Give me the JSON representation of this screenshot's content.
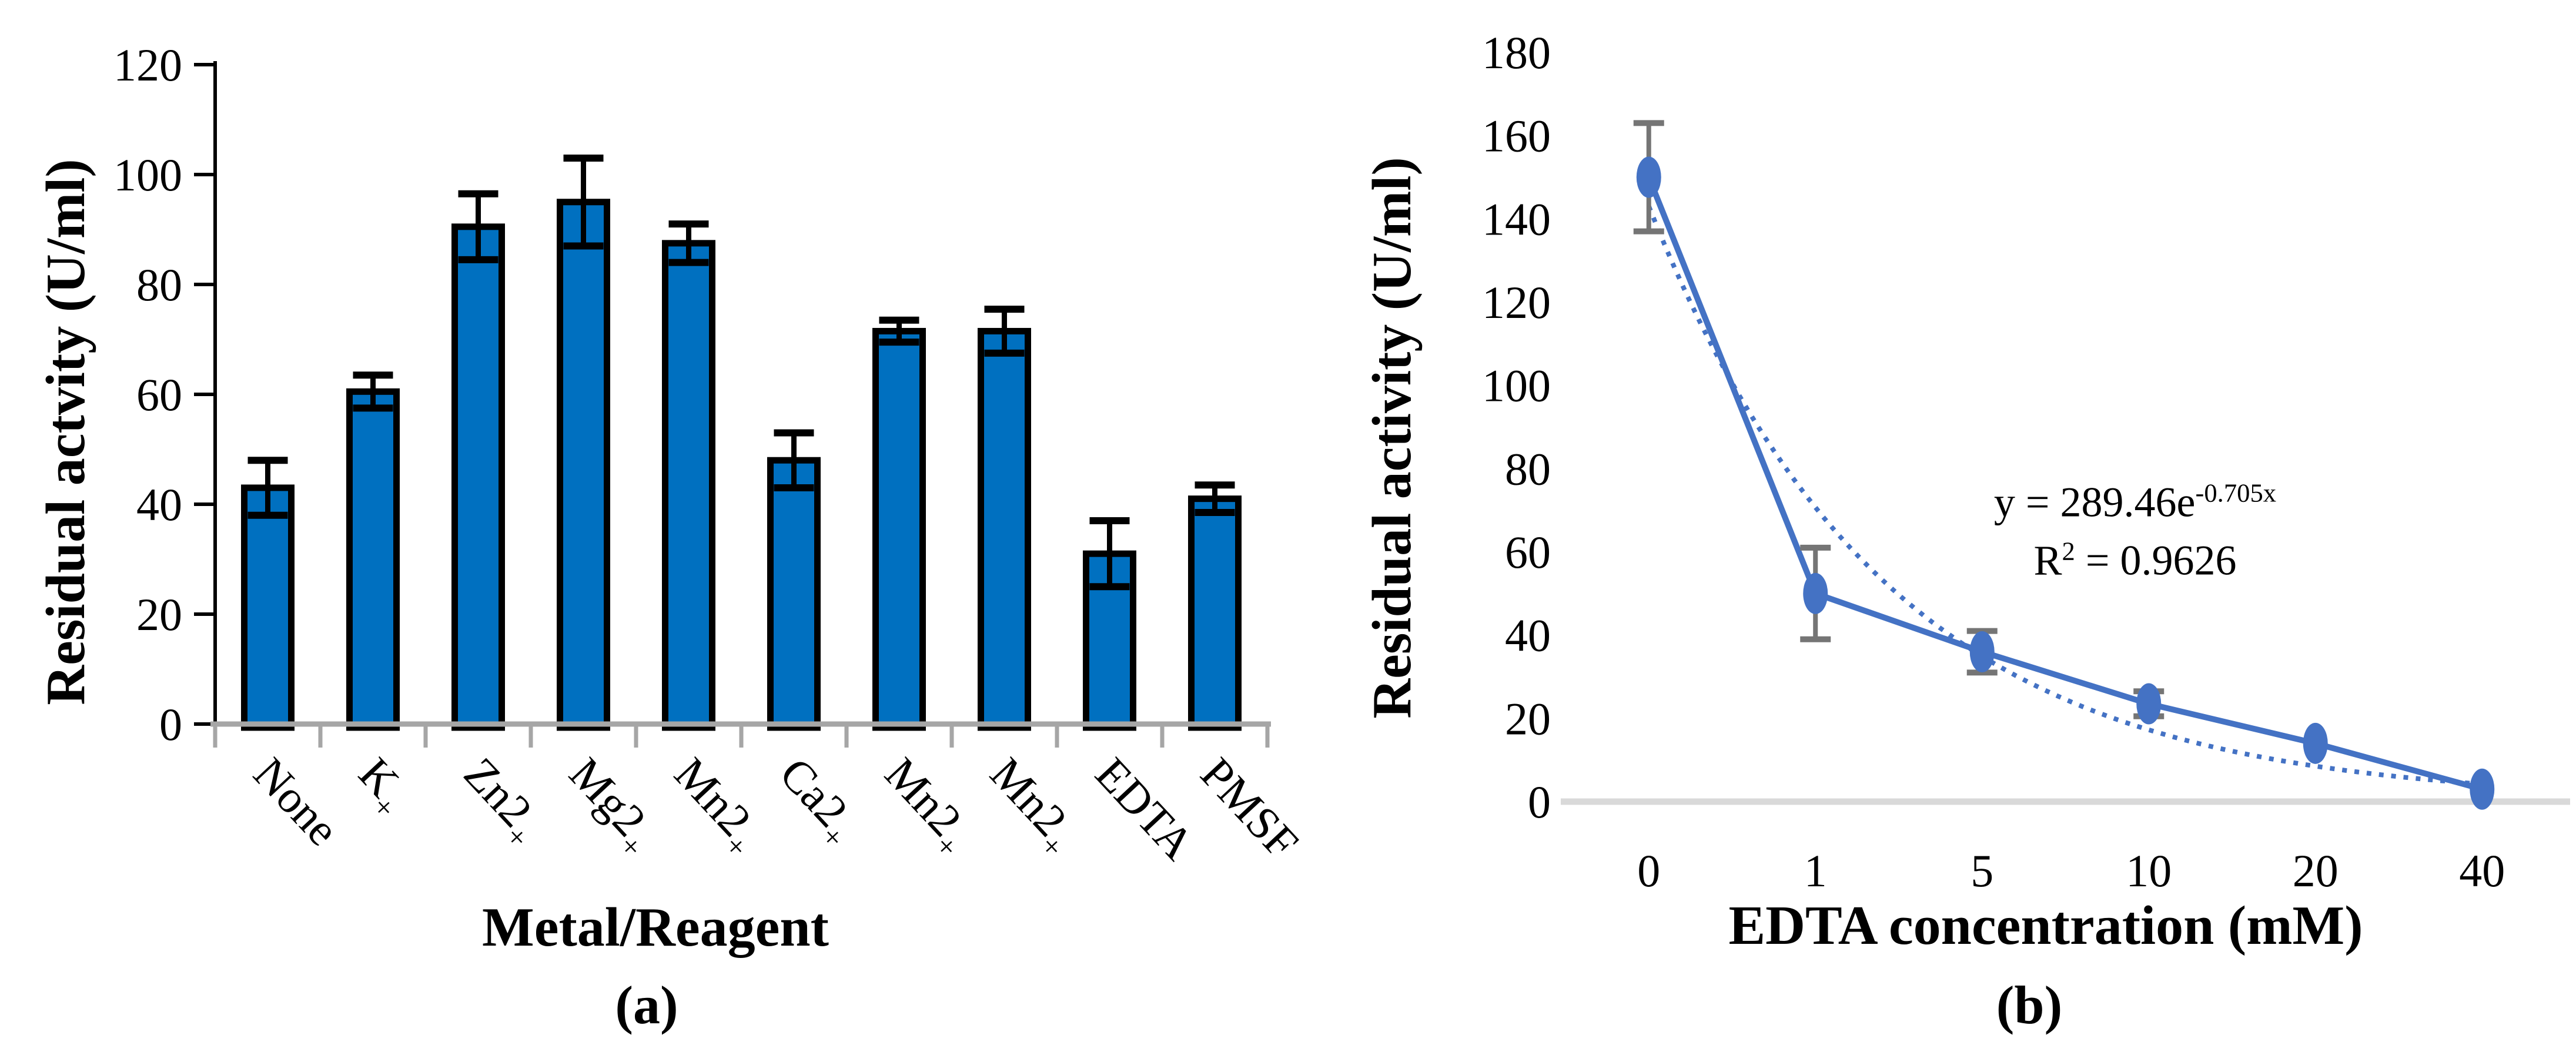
{
  "figure": {
    "background": "#ffffff",
    "labels": {
      "left_ylabel": "Residual actvity (U/ml)",
      "left_xlabel": "Metal/Reagent",
      "panel_a": "(a)",
      "right_ylabel": "Residual activity (U/ml)",
      "right_xlabel": "EDTA concentration (mM)",
      "panel_b": "(b)",
      "eq_base": "y = 289.46e",
      "eq_sup": "-0.705x",
      "r2_base": "R",
      "r2_sup": "2",
      "r2_rest": " = 0.9626"
    }
  },
  "chart_data": [
    {
      "type": "bar",
      "panel": "a",
      "title": "",
      "xlabel": "Metal/Reagent",
      "ylabel": "Residual actvity (U/ml)",
      "categories": [
        "None",
        "K+",
        "Zn2+",
        "Mg2+",
        "Mn2+",
        "Ca2+",
        "Mn2+",
        "Mn2+",
        "EDTA",
        "PMSF"
      ],
      "values": [
        43,
        60.5,
        90.5,
        95,
        87.5,
        48,
        71.5,
        71.5,
        31,
        41
      ],
      "errors": [
        5,
        3,
        6,
        8,
        3.5,
        5,
        2,
        4,
        6,
        2.5
      ],
      "ylim": [
        0,
        120
      ],
      "yticks": [
        0,
        20,
        40,
        60,
        80,
        100,
        120
      ],
      "grid": false,
      "legend": null,
      "x_label_angle_deg": 47,
      "bar_fill": "#0070C0",
      "bar_border": "#000000",
      "error_color": "#000000",
      "yaxis_color": "#000000",
      "baseline_color": "#A6A6A6"
    },
    {
      "type": "line",
      "panel": "b",
      "title": "",
      "xlabel": "EDTA concentration (mM)",
      "ylabel": "Residual activity (U/ml)",
      "categories": [
        "0",
        "1",
        "5",
        "10",
        "20",
        "40"
      ],
      "values": [
        150,
        50,
        36,
        23.5,
        14,
        3
      ],
      "errors": [
        13,
        11,
        5,
        3,
        0,
        0
      ],
      "ylim": [
        0,
        180
      ],
      "yticks": [
        0,
        20,
        40,
        60,
        80,
        100,
        120,
        140,
        160,
        180
      ],
      "grid": false,
      "legend": null,
      "line_color": "#4472C4",
      "marker": "ellipse",
      "error_color": "#757575",
      "baseline_color": "#D9D9D9",
      "trendline": {
        "style": "dotted",
        "color": "#4472C4",
        "a": 289.46,
        "b": -0.705,
        "x_index_offset": 1,
        "equation": "y = 289.46e^(-0.705x)",
        "r_squared": 0.9626
      }
    }
  ]
}
